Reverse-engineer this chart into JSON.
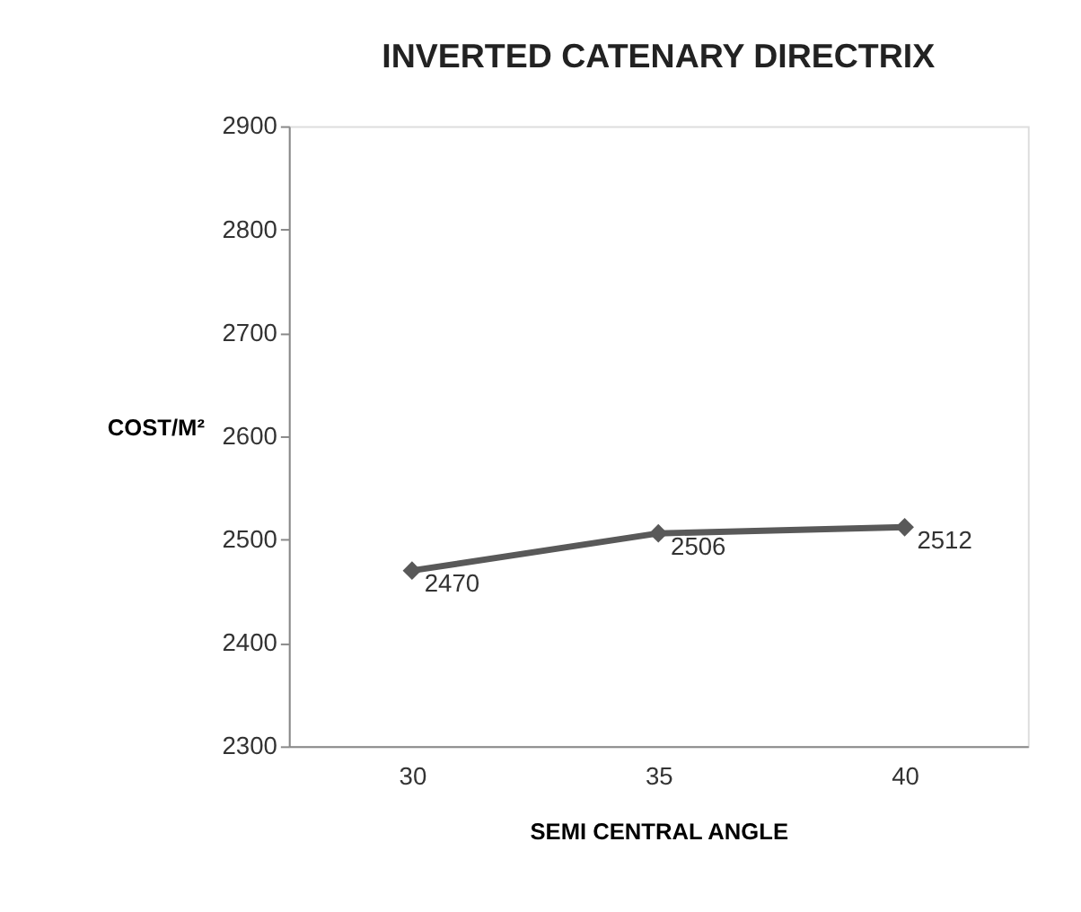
{
  "chart_data": {
    "type": "line",
    "title": "INVERTED CATENARY DIRECTRIX",
    "xlabel": "SEMI CENTRAL  ANGLE",
    "ylabel": "COST/M²",
    "categories": [
      "30",
      "35",
      "40"
    ],
    "series": [
      {
        "color": "#595959",
        "values": [
          2470,
          2506,
          2512
        ]
      }
    ],
    "ylim": [
      2300,
      2900
    ],
    "yticks": [
      2300,
      2400,
      2500,
      2600,
      2700,
      2800,
      2900
    ],
    "data_labels": true,
    "grid": false,
    "marker": "diamond",
    "line_style": "solid"
  }
}
